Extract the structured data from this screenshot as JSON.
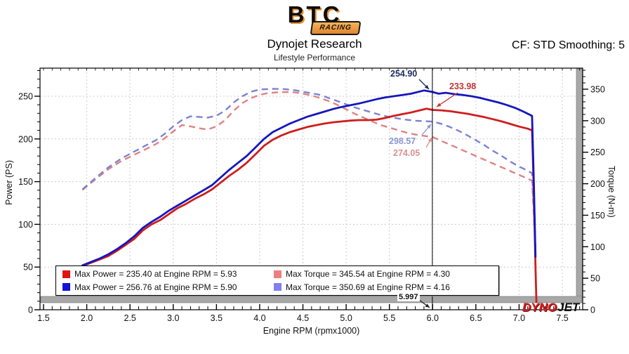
{
  "header": {
    "logo": {
      "main": "BTC",
      "sub": "RACING"
    },
    "title": "Dynojet Research",
    "subtitle": "Lifestyle Performance",
    "cf_label": "CF: STD Smoothing: 5"
  },
  "watermark": {
    "dyno": "DYNO",
    "jet": "JET"
  },
  "chart_data": {
    "type": "line",
    "title": "Dynojet Research",
    "xlabel": "Engine RPM (rpmx1000)",
    "ylabel_left": "Power (PS)",
    "ylabel_right": "Torque (N-m)",
    "xlim": [
      1.5,
      7.5
    ],
    "ylim_left": [
      0,
      250
    ],
    "ylim_right": [
      0,
      350
    ],
    "grid": true,
    "x_ticks": [
      1.5,
      2.0,
      2.5,
      3.0,
      3.5,
      4.0,
      4.5,
      5.0,
      5.5,
      6.0,
      6.5,
      7.0,
      7.5
    ],
    "y_left_ticks": [
      0,
      50,
      100,
      150,
      200,
      250
    ],
    "y_right_ticks": [
      0,
      50,
      100,
      150,
      200,
      250,
      300,
      350
    ],
    "cursor": {
      "x": 5.997,
      "label": "5.997"
    },
    "annotations": [
      {
        "label": "254.90",
        "color": "#1e2b5e",
        "series": "power-run2",
        "at_rpm": 5.997
      },
      {
        "label": "233.98",
        "color": "#c23535",
        "series": "power-run1",
        "at_rpm": 5.997
      },
      {
        "label": "298.57",
        "color": "#8b97cf",
        "series": "torque-run2",
        "at_rpm": 5.997
      },
      {
        "label": "274.05",
        "color": "#dd9090",
        "series": "torque-run1",
        "at_rpm": 5.997
      }
    ],
    "legend": [
      {
        "swatch": "#e21212",
        "label": "Max Power = 235.40 at Engine RPM = 5.93"
      },
      {
        "swatch": "#ee7e7e",
        "label": "Max Torque = 345.54 at Engine RPM = 4.30"
      },
      {
        "swatch": "#1212d8",
        "label": "Max Power = 256.76 at Engine RPM = 5.90"
      },
      {
        "swatch": "#8080ee",
        "label": "Max Torque = 350.69 at Engine RPM = 4.16"
      }
    ],
    "series": [
      {
        "name": "torque-run1",
        "axis": "torque",
        "style": "dashed",
        "color": "#df8383",
        "max": {
          "value": 345.54,
          "rpm": 4.3
        },
        "points": [
          [
            1.95,
            190
          ],
          [
            2.1,
            207
          ],
          [
            2.25,
            223
          ],
          [
            2.4,
            236
          ],
          [
            2.55,
            246
          ],
          [
            2.7,
            256
          ],
          [
            2.8,
            263
          ],
          [
            2.9,
            272
          ],
          [
            3.0,
            283
          ],
          [
            3.1,
            293
          ],
          [
            3.2,
            291
          ],
          [
            3.3,
            288
          ],
          [
            3.4,
            286
          ],
          [
            3.5,
            291
          ],
          [
            3.6,
            301
          ],
          [
            3.7,
            316
          ],
          [
            3.8,
            328
          ],
          [
            3.9,
            336
          ],
          [
            4.0,
            341
          ],
          [
            4.1,
            344
          ],
          [
            4.2,
            345
          ],
          [
            4.3,
            345.54
          ],
          [
            4.4,
            345
          ],
          [
            4.5,
            343
          ],
          [
            4.6,
            340
          ],
          [
            4.7,
            336
          ],
          [
            4.8,
            331
          ],
          [
            4.9,
            325
          ],
          [
            5.0,
            318
          ],
          [
            5.1,
            311
          ],
          [
            5.2,
            305
          ],
          [
            5.3,
            299
          ],
          [
            5.4,
            293
          ],
          [
            5.5,
            289
          ],
          [
            5.6,
            285
          ],
          [
            5.7,
            281
          ],
          [
            5.8,
            278
          ],
          [
            5.9,
            276
          ],
          [
            6.0,
            274.05
          ],
          [
            6.1,
            268
          ],
          [
            6.2,
            262
          ],
          [
            6.3,
            256
          ],
          [
            6.4,
            250
          ],
          [
            6.5,
            244
          ],
          [
            6.6,
            238
          ],
          [
            6.7,
            232
          ],
          [
            6.8,
            226
          ],
          [
            6.9,
            220
          ],
          [
            7.0,
            214
          ],
          [
            7.1,
            208
          ],
          [
            7.15,
            205
          ],
          [
            7.17,
            150
          ],
          [
            7.19,
            95
          ]
        ]
      },
      {
        "name": "torque-run2",
        "axis": "torque",
        "style": "dashed",
        "color": "#7d82d4",
        "max": {
          "value": 350.69,
          "rpm": 4.16
        },
        "points": [
          [
            1.95,
            191
          ],
          [
            2.1,
            209
          ],
          [
            2.25,
            226
          ],
          [
            2.4,
            240
          ],
          [
            2.55,
            251
          ],
          [
            2.7,
            262
          ],
          [
            2.8,
            269
          ],
          [
            2.9,
            279
          ],
          [
            3.0,
            291
          ],
          [
            3.1,
            301
          ],
          [
            3.2,
            307
          ],
          [
            3.3,
            306
          ],
          [
            3.4,
            305
          ],
          [
            3.5,
            308
          ],
          [
            3.6,
            316
          ],
          [
            3.7,
            329
          ],
          [
            3.8,
            339
          ],
          [
            3.9,
            346
          ],
          [
            4.0,
            349.5
          ],
          [
            4.16,
            350.69
          ],
          [
            4.3,
            350
          ],
          [
            4.4,
            348.5
          ],
          [
            4.5,
            346
          ],
          [
            4.6,
            343.5
          ],
          [
            4.7,
            341
          ],
          [
            4.8,
            336
          ],
          [
            4.9,
            331
          ],
          [
            5.0,
            326
          ],
          [
            5.1,
            321
          ],
          [
            5.2,
            317
          ],
          [
            5.3,
            313
          ],
          [
            5.4,
            309
          ],
          [
            5.5,
            306
          ],
          [
            5.6,
            303.5
          ],
          [
            5.7,
            301.5
          ],
          [
            5.8,
            300
          ],
          [
            5.9,
            299.3
          ],
          [
            6.0,
            298.57
          ],
          [
            6.1,
            295
          ],
          [
            6.2,
            290
          ],
          [
            6.3,
            284
          ],
          [
            6.4,
            277
          ],
          [
            6.5,
            269
          ],
          [
            6.6,
            261
          ],
          [
            6.7,
            252
          ],
          [
            6.8,
            244
          ],
          [
            6.9,
            235
          ],
          [
            7.0,
            227
          ],
          [
            7.05,
            224
          ],
          [
            7.1,
            220
          ],
          [
            7.15,
            217
          ],
          [
            7.17,
            160
          ],
          [
            7.19,
            100
          ]
        ]
      },
      {
        "name": "power-run1",
        "axis": "power",
        "style": "solid",
        "color": "#cf1d1d",
        "max": {
          "value": 235.4,
          "rpm": 5.93
        },
        "points": [
          [
            1.95,
            51
          ],
          [
            2.05,
            55
          ],
          [
            2.15,
            59
          ],
          [
            2.25,
            63
          ],
          [
            2.35,
            69
          ],
          [
            2.45,
            76
          ],
          [
            2.55,
            83
          ],
          [
            2.65,
            93
          ],
          [
            2.75,
            100
          ],
          [
            2.85,
            105
          ],
          [
            2.95,
            112
          ],
          [
            3.05,
            119
          ],
          [
            3.15,
            124
          ],
          [
            3.25,
            130
          ],
          [
            3.35,
            135
          ],
          [
            3.45,
            141
          ],
          [
            3.55,
            149
          ],
          [
            3.65,
            157
          ],
          [
            3.75,
            164
          ],
          [
            3.85,
            172
          ],
          [
            3.95,
            182
          ],
          [
            4.05,
            192
          ],
          [
            4.15,
            199
          ],
          [
            4.25,
            204
          ],
          [
            4.35,
            208
          ],
          [
            4.45,
            211
          ],
          [
            4.55,
            214
          ],
          [
            4.65,
            216
          ],
          [
            4.75,
            218
          ],
          [
            4.85,
            219.5
          ],
          [
            4.95,
            220.5
          ],
          [
            5.05,
            221.5
          ],
          [
            5.15,
            222
          ],
          [
            5.25,
            222
          ],
          [
            5.35,
            222.5
          ],
          [
            5.45,
            224.5
          ],
          [
            5.55,
            227
          ],
          [
            5.65,
            229
          ],
          [
            5.75,
            231
          ],
          [
            5.85,
            233.5
          ],
          [
            5.93,
            235.4
          ],
          [
            6.0,
            233.98
          ],
          [
            6.1,
            233.5
          ],
          [
            6.2,
            232.5
          ],
          [
            6.3,
            231
          ],
          [
            6.4,
            229.5
          ],
          [
            6.5,
            227.5
          ],
          [
            6.6,
            225.5
          ],
          [
            6.7,
            223
          ],
          [
            6.8,
            220.5
          ],
          [
            6.9,
            217.5
          ],
          [
            7.0,
            214.5
          ],
          [
            7.1,
            212
          ],
          [
            7.15,
            210
          ],
          [
            7.17,
            140
          ],
          [
            7.19,
            50
          ],
          [
            7.2,
            9
          ]
        ]
      },
      {
        "name": "power-run2",
        "axis": "power",
        "style": "solid",
        "color": "#1616bd",
        "max": {
          "value": 256.76,
          "rpm": 5.9
        },
        "points": [
          [
            1.95,
            52
          ],
          [
            2.05,
            56
          ],
          [
            2.15,
            60
          ],
          [
            2.25,
            65
          ],
          [
            2.35,
            71
          ],
          [
            2.45,
            78
          ],
          [
            2.55,
            86
          ],
          [
            2.65,
            96
          ],
          [
            2.75,
            103
          ],
          [
            2.85,
            109
          ],
          [
            2.95,
            116
          ],
          [
            3.05,
            122
          ],
          [
            3.15,
            128
          ],
          [
            3.25,
            134
          ],
          [
            3.35,
            140
          ],
          [
            3.45,
            146
          ],
          [
            3.55,
            155
          ],
          [
            3.65,
            164
          ],
          [
            3.75,
            172
          ],
          [
            3.85,
            180
          ],
          [
            3.95,
            190
          ],
          [
            4.05,
            200
          ],
          [
            4.15,
            208
          ],
          [
            4.25,
            213
          ],
          [
            4.35,
            218
          ],
          [
            4.45,
            222
          ],
          [
            4.55,
            226
          ],
          [
            4.65,
            229
          ],
          [
            4.75,
            232
          ],
          [
            4.85,
            235
          ],
          [
            4.95,
            237.5
          ],
          [
            5.05,
            239.5
          ],
          [
            5.15,
            241.5
          ],
          [
            5.25,
            244
          ],
          [
            5.35,
            246.5
          ],
          [
            5.45,
            248.5
          ],
          [
            5.55,
            250
          ],
          [
            5.65,
            251.5
          ],
          [
            5.75,
            253
          ],
          [
            5.85,
            255.5
          ],
          [
            5.9,
            256.76
          ],
          [
            5.97,
            255.5
          ],
          [
            6.0,
            254.9
          ],
          [
            6.07,
            253
          ],
          [
            6.15,
            254
          ],
          [
            6.25,
            252.5
          ],
          [
            6.35,
            251.5
          ],
          [
            6.45,
            250
          ],
          [
            6.55,
            248
          ],
          [
            6.65,
            245.5
          ],
          [
            6.75,
            243
          ],
          [
            6.85,
            240
          ],
          [
            6.95,
            236.5
          ],
          [
            7.05,
            232
          ],
          [
            7.12,
            228.5
          ],
          [
            7.15,
            227
          ],
          [
            7.17,
            150
          ],
          [
            7.19,
            62
          ]
        ]
      }
    ]
  }
}
